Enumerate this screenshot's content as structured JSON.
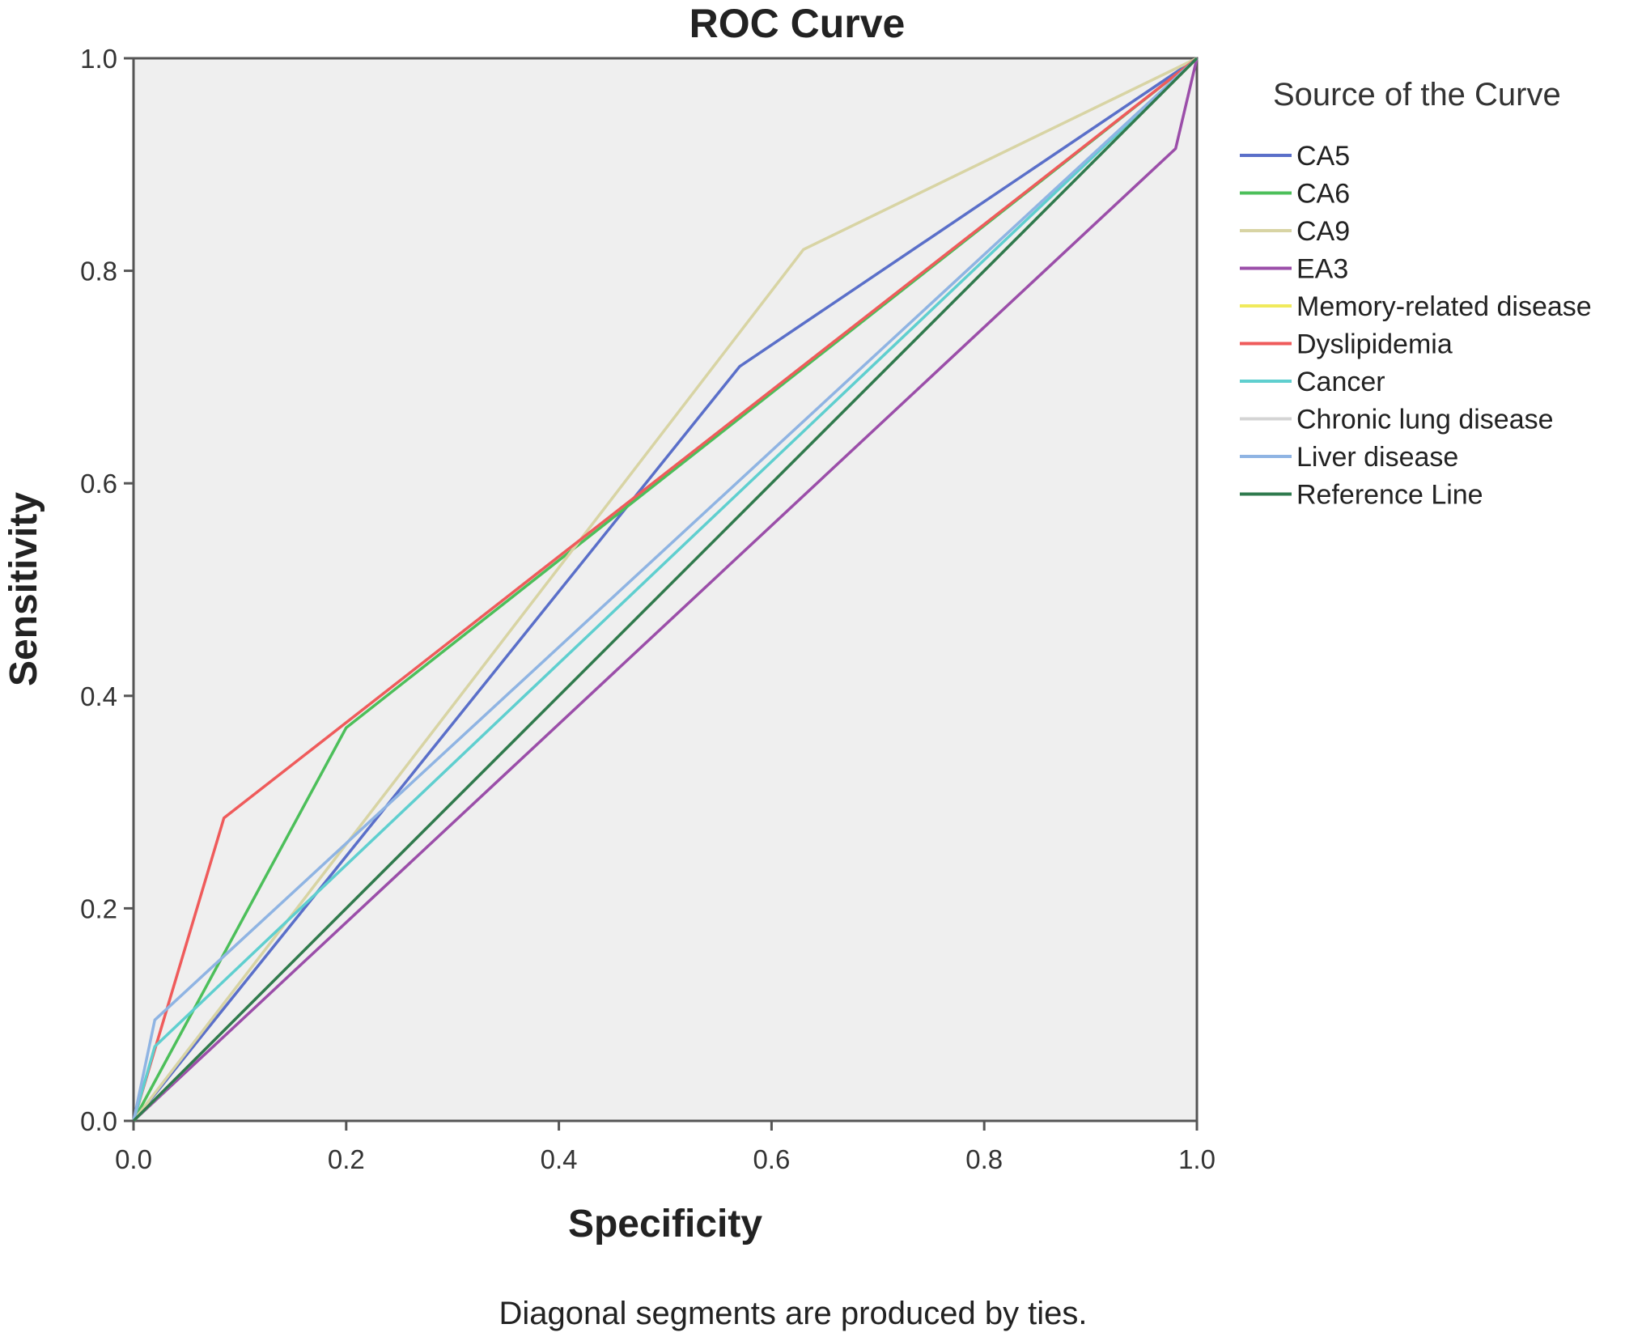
{
  "chart_data": {
    "type": "line",
    "title": "ROC Curve",
    "xlabel": "Specificity",
    "ylabel": "Sensitivity",
    "xlim": [
      0,
      1
    ],
    "ylim": [
      0,
      1
    ],
    "xticks": [
      "0.0",
      "0.2",
      "0.4",
      "0.6",
      "0.8",
      "1.0"
    ],
    "yticks": [
      "0.0",
      "0.2",
      "0.4",
      "0.6",
      "0.8",
      "1.0"
    ],
    "grid": false,
    "legend": {
      "title": "Source of the Curve",
      "placement": "right"
    },
    "footnote": "Diagonal segments are produced by ties.",
    "series": [
      {
        "name": "CA5",
        "color": "#5a6fc9",
        "x": [
          0,
          0.57,
          1.0
        ],
        "y": [
          0,
          0.71,
          1.0
        ]
      },
      {
        "name": "CA6",
        "color": "#4cbf5a",
        "x": [
          0,
          0.2,
          1.0
        ],
        "y": [
          0,
          0.37,
          1.0
        ]
      },
      {
        "name": "CA9",
        "color": "#d8d4a4",
        "x": [
          0,
          0.63,
          1.0
        ],
        "y": [
          0,
          0.82,
          1.0
        ]
      },
      {
        "name": "EA3",
        "color": "#9b4ea9",
        "x": [
          0,
          0.98,
          1.0
        ],
        "y": [
          0,
          0.915,
          1.0
        ]
      },
      {
        "name": "Memory-related disease",
        "color": "#f0ea5c",
        "x": [
          0,
          1.0
        ],
        "y": [
          0,
          1.0
        ]
      },
      {
        "name": "Dyslipidemia",
        "color": "#ef5b5b",
        "x": [
          0,
          0.085,
          1.0
        ],
        "y": [
          0,
          0.285,
          1.0
        ]
      },
      {
        "name": "Cancer",
        "color": "#5fcfcf",
        "x": [
          0,
          0.02,
          1.0
        ],
        "y": [
          0,
          0.07,
          1.0
        ]
      },
      {
        "name": "Chronic lung disease",
        "color": "#d4d4d4",
        "x": [
          0,
          1.0
        ],
        "y": [
          0,
          1.0
        ]
      },
      {
        "name": "Liver disease",
        "color": "#8fb4e3",
        "x": [
          0,
          0.02,
          1.0
        ],
        "y": [
          0,
          0.095,
          1.0
        ]
      },
      {
        "name": "Reference Line",
        "color": "#2f7a4e",
        "x": [
          0,
          1.0
        ],
        "y": [
          0,
          1.0
        ]
      }
    ]
  }
}
